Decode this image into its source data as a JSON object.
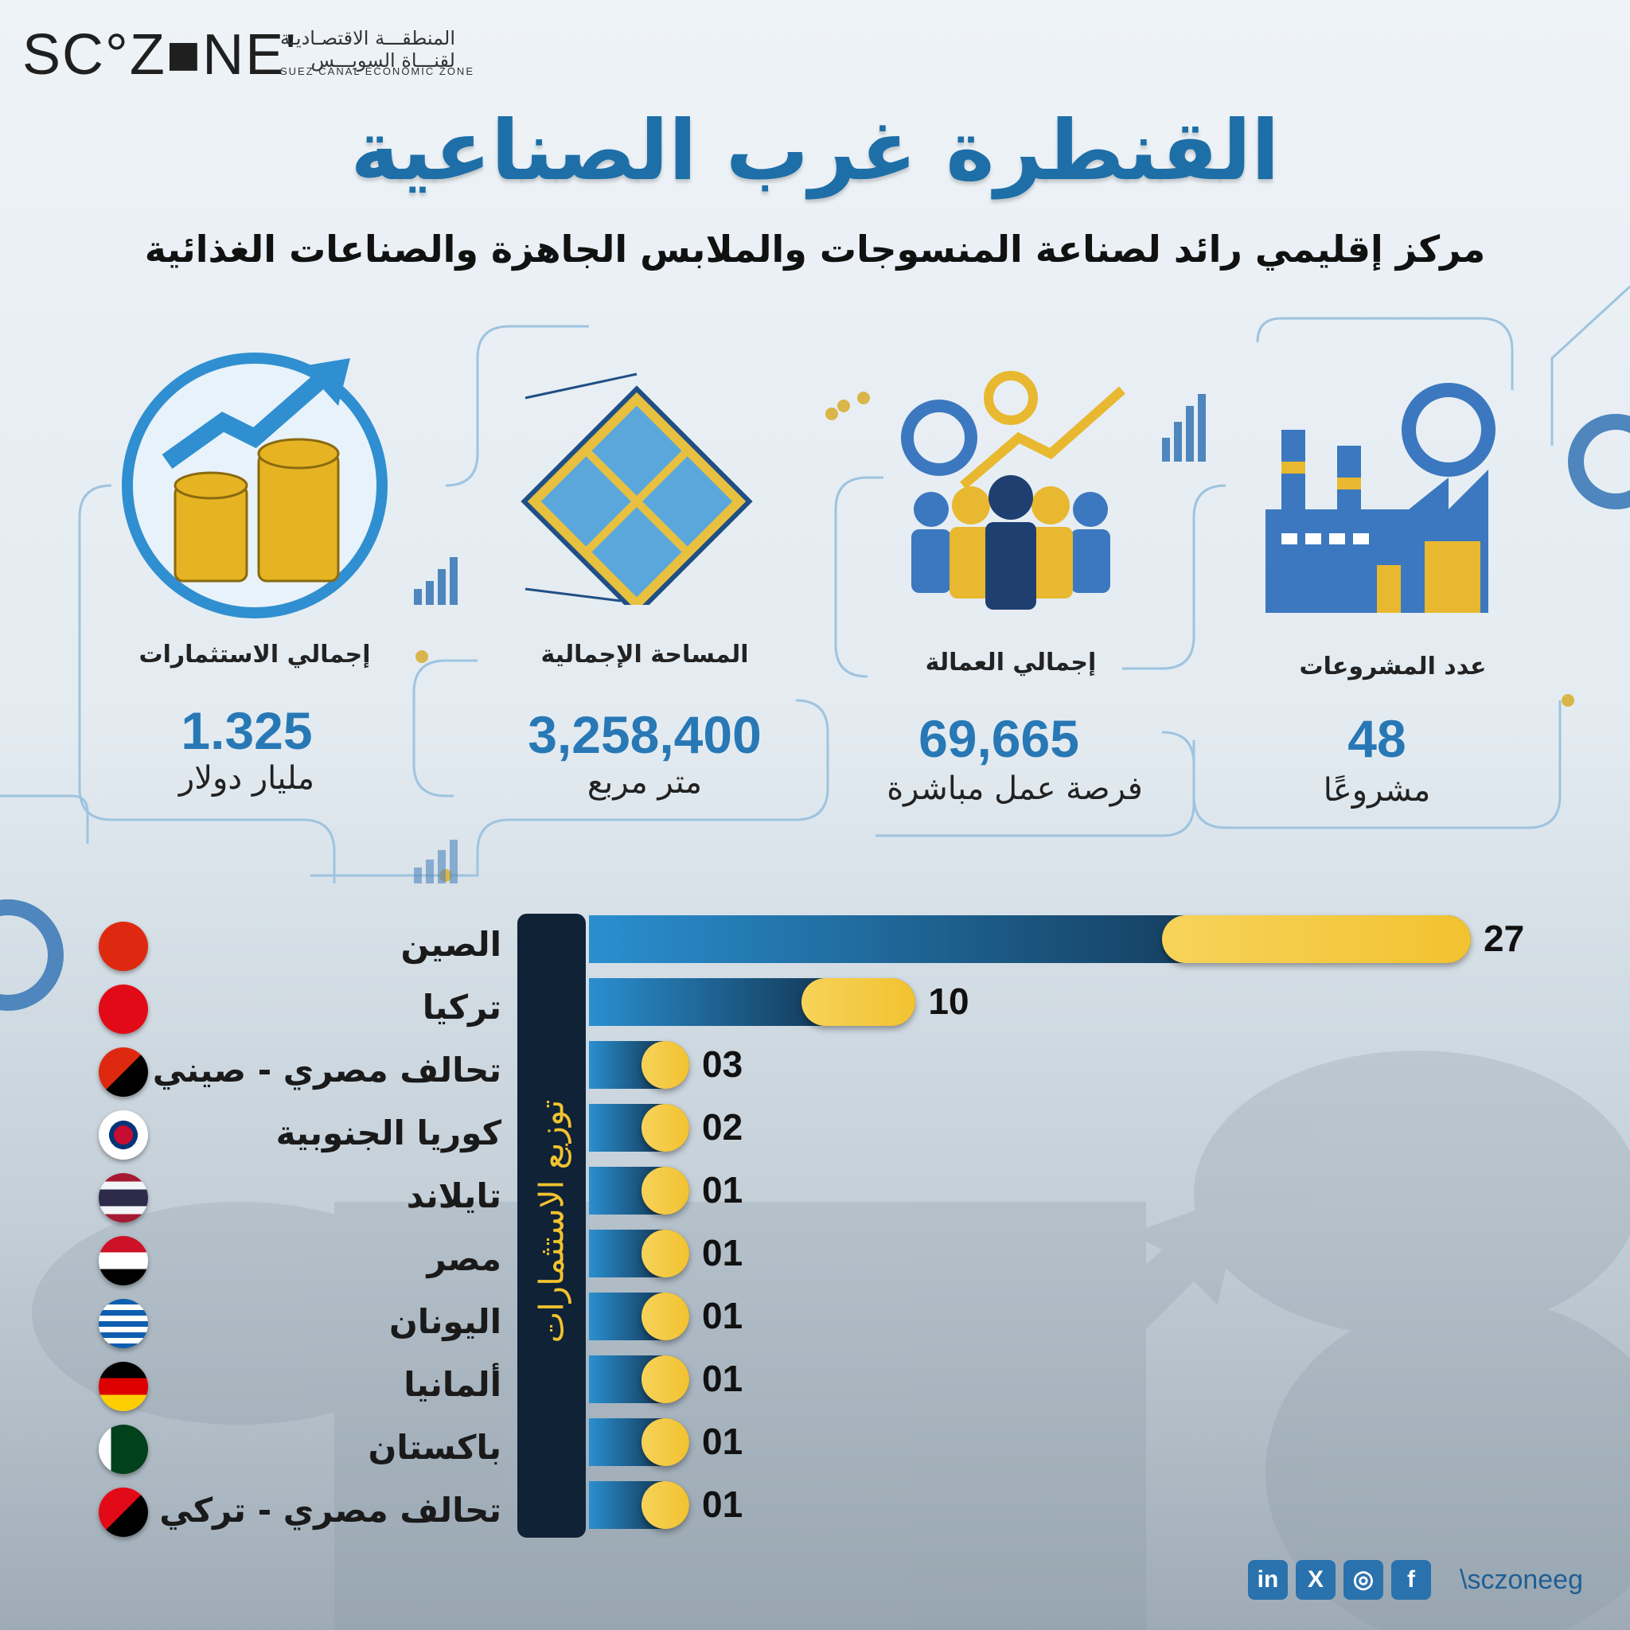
{
  "header": {
    "logo_text": "SC°Z■NE'",
    "logo_arabic": "المنطقـــة الاقتصـاديـة لقنـــاة السويـــس",
    "logo_english": "SUEZ CANAL ECONOMIC ZONE",
    "title": "القنطرة غرب الصناعية",
    "subtitle": "مركز إقليمي رائد لصناعة المنسوجات والملابس الجاهزة والصناعات الغذائية"
  },
  "kpis": [
    {
      "label": "إجمالي الاستثمارات",
      "value": "1.325",
      "unit": "مليار دولار",
      "icon": "coins-growth-icon"
    },
    {
      "label": "المساحة الإجمالية",
      "value": "3,258,400",
      "unit": "متر مربع",
      "icon": "area-plan-icon"
    },
    {
      "label": "إجمالي العمالة",
      "value": "69,665",
      "unit": "فرصة عمل مباشرة",
      "icon": "workforce-icon"
    },
    {
      "label": "عدد المشروعات",
      "value": "48",
      "unit": "مشروعًا",
      "icon": "factory-icon"
    }
  ],
  "chart_data": {
    "type": "bar",
    "title": "توزيع الاستثمارات",
    "orientation": "horizontal",
    "categories": [
      "الصين",
      "تركيا",
      "تحالف مصري - صيني",
      "كوريا الجنوبية",
      "تايلاند",
      "مصر",
      "اليونان",
      "ألمانيا",
      "باكستان",
      "تحالف مصري - تركي"
    ],
    "values": [
      27,
      10,
      3,
      2,
      1,
      1,
      1,
      1,
      1,
      1
    ],
    "value_labels": [
      "27",
      "10",
      "03",
      "02",
      "01",
      "01",
      "01",
      "01",
      "01",
      "01"
    ],
    "flags": [
      "china-flag-icon",
      "turkey-flag-icon",
      "egypt-china-flag-icon",
      "south-korea-flag-icon",
      "thailand-flag-icon",
      "egypt-flag-icon",
      "greece-flag-icon",
      "germany-flag-icon",
      "pakistan-flag-icon",
      "egypt-turkey-flag-icon"
    ],
    "colors": {
      "bar_start": "#2a8fd0",
      "bar_end": "#0b1a2c",
      "cap": "#f2c230"
    }
  },
  "footer": {
    "handle": "\\sczoneeg",
    "icons": [
      "linkedin-icon",
      "x-icon",
      "instagram-icon",
      "facebook-icon"
    ],
    "icon_glyphs": [
      "in",
      "X",
      "◎",
      "f"
    ]
  }
}
